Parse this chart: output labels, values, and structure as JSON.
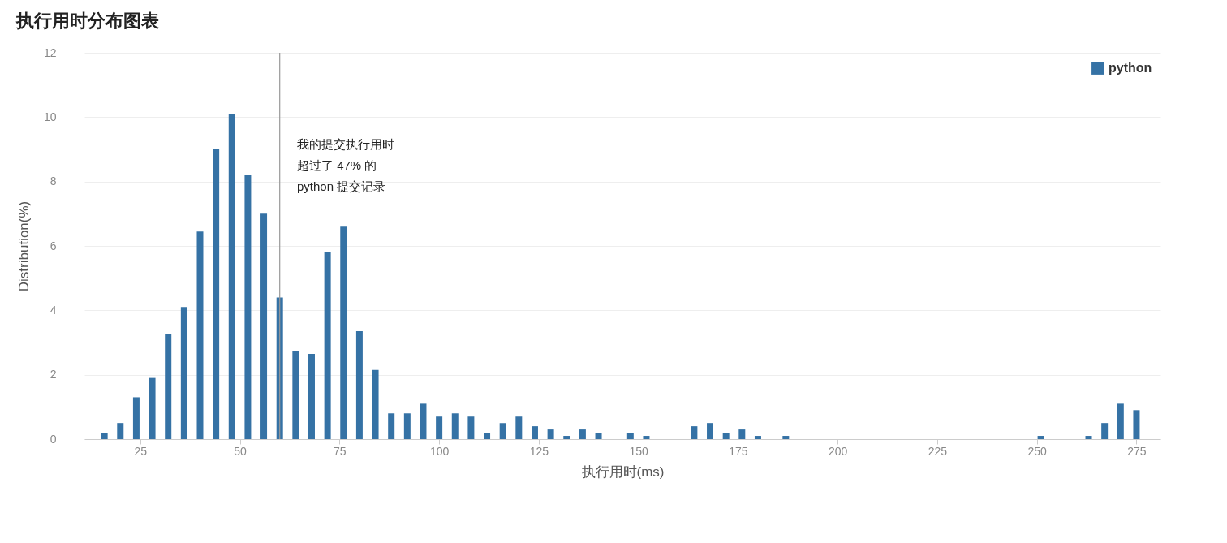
{
  "chart_data": {
    "type": "bar",
    "title": "执行用时分布图表",
    "xlabel": "执行用时(ms)",
    "ylabel": "Distribution(%)",
    "x": [
      16,
      20,
      24,
      28,
      32,
      36,
      40,
      44,
      48,
      52,
      56,
      60,
      64,
      68,
      72,
      76,
      80,
      84,
      88,
      92,
      96,
      100,
      104,
      108,
      112,
      116,
      120,
      124,
      128,
      132,
      136,
      140,
      148,
      152,
      164,
      168,
      172,
      176,
      180,
      187,
      251,
      263,
      267,
      271,
      275
    ],
    "series": [
      {
        "name": "python",
        "color": "#3572a5",
        "values": [
          0.2,
          0.5,
          1.3,
          1.9,
          3.25,
          4.1,
          6.45,
          9.0,
          10.1,
          8.2,
          7.0,
          4.4,
          2.75,
          2.65,
          5.8,
          6.6,
          3.35,
          2.15,
          0.8,
          0.8,
          1.1,
          0.7,
          0.8,
          0.7,
          0.2,
          0.5,
          0.7,
          0.4,
          0.3,
          0.1,
          0.3,
          0.2,
          0.2,
          0.1,
          0.4,
          0.5,
          0.2,
          0.3,
          0.1,
          0.1,
          0.1,
          0.1,
          0.5,
          1.1,
          0.9
        ]
      }
    ],
    "xlim": [
      12,
      280
    ],
    "xticks": [
      25,
      50,
      75,
      100,
      125,
      150,
      175,
      200,
      225,
      250,
      275
    ],
    "ylim": [
      0,
      12
    ],
    "yticks": [
      0,
      2,
      4,
      6,
      8,
      10,
      12
    ],
    "grid": "y",
    "legend": "top right",
    "ref_lines": [
      {
        "axis": "x",
        "value": 60,
        "color": "#999999"
      }
    ],
    "annotations": [
      "我的提交执行用时",
      "超过了 47% 的",
      "python 提交记录"
    ]
  }
}
